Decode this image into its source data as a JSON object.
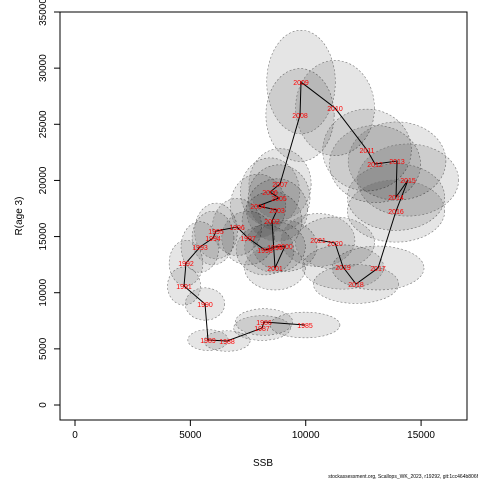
{
  "chart_data": {
    "type": "scatter",
    "xlabel": "SSB",
    "ylabel": "R(age 3)",
    "footnote": "stockassessment.org, Scallops_WK_2023, r19292, git:1cc464b806f",
    "point_labels": [
      "1985",
      "1986",
      "1987",
      "1988",
      "1989",
      "1990",
      "1991",
      "1992",
      "1993",
      "1994",
      "1995",
      "1996",
      "1997",
      "1998",
      "1999",
      "2000",
      "2001",
      "2002",
      "2003",
      "2004",
      "2005",
      "2006",
      "2007",
      "2008",
      "2009",
      "2010",
      "2011",
      "2012",
      "2013",
      "2014",
      "2015",
      "2016",
      "2017",
      "2018",
      "2019",
      "2020",
      "2021"
    ],
    "x": [
      9970,
      8192,
      8106,
      6589,
      5765,
      5635,
      4725,
      4811,
      5418,
      5982,
      6112,
      7022,
      7499,
      8236,
      8669,
      9103,
      8669,
      8539,
      8756,
      7932,
      8843,
      8453,
      8886,
      9753,
      9796,
      11270,
      12657,
      13004,
      13958,
      13914,
      14434,
      13914,
      13134,
      12180,
      11617,
      11270,
      10533
    ],
    "values": [
      7124,
      7391,
      6857,
      5699,
      5788,
      8994,
      10597,
      12645,
      14069,
      14871,
      15494,
      15850,
      14871,
      13802,
      14069,
      14158,
      12199,
      16385,
      17364,
      17720,
      18433,
      18967,
      19680,
      25824,
      28762,
      26447,
      22707,
      21460,
      21727,
      18522,
      20036,
      17275,
      12199,
      10775,
      12288,
      14426,
      14693
    ],
    "line_color": "#000000",
    "label_color": "#ff0000",
    "xlim": [
      -650,
      16990
    ],
    "ylim": [
      -1336,
      35000
    ],
    "xticks": [
      0,
      5000,
      10000,
      15000
    ],
    "yticks": [
      0,
      5000,
      10000,
      15000,
      20000,
      25000,
      30000,
      35000
    ]
  }
}
